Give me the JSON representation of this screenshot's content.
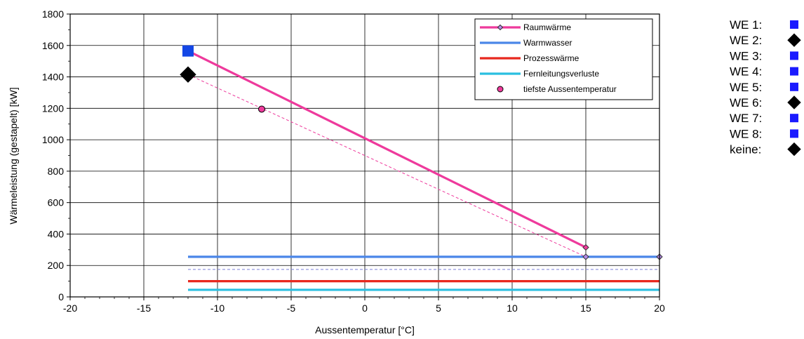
{
  "chart_data": {
    "type": "line",
    "title": "",
    "xlabel": "Aussentemperatur [°C]",
    "ylabel": "Wärmeleistung (gestapelt) [kW]",
    "xlim": [
      -20,
      20
    ],
    "ylim": [
      0,
      1800
    ],
    "xticks": [
      -20,
      -15,
      -10,
      -5,
      0,
      5,
      10,
      15,
      20
    ],
    "yticks": [
      0,
      200,
      400,
      600,
      800,
      1000,
      1200,
      1400,
      1600,
      1800
    ],
    "grid": true,
    "legend_position": "top-right",
    "series": [
      {
        "name": "Raumwärme",
        "color": "#ee3a9c",
        "marker": "diamond",
        "x": [
          -12,
          15
        ],
        "y": [
          1565,
          315
        ]
      },
      {
        "name": "Warmwasser",
        "color": "#4a86e8",
        "marker": "diamond",
        "x": [
          -12,
          20
        ],
        "y": [
          255,
          255
        ]
      },
      {
        "name": "Prozesswärme",
        "color": "#e8281e",
        "x": [
          -12,
          20
        ],
        "y": [
          100,
          100
        ]
      },
      {
        "name": "Fernleitungsverluste",
        "color": "#29bfe0",
        "x": [
          -12,
          20
        ],
        "y": [
          45,
          45
        ]
      },
      {
        "name": "tiefste Aussentemperatur",
        "color": "#ee3a9c",
        "marker": "circle",
        "x": [
          -7
        ],
        "y": [
          1195
        ]
      }
    ],
    "dashed_lines": [
      {
        "color": "#ee3a9c",
        "x": [
          -12,
          15
        ],
        "y": [
          1415,
          255
        ]
      },
      {
        "color": "#7b7fd8",
        "x": [
          -12,
          20
        ],
        "y": [
          175,
          175
        ]
      }
    ],
    "extra_markers": [
      {
        "shape": "square",
        "color": "#1447e6",
        "x": -12,
        "y": 1565
      },
      {
        "shape": "diamond",
        "color": "#000000",
        "x": -12,
        "y": 1415
      },
      {
        "shape": "diamond-small",
        "color": "#b388e8",
        "x": 15,
        "y": 255
      }
    ]
  },
  "side_legend": [
    {
      "label": "WE 1:",
      "shape": "square",
      "color": "#1a1aff"
    },
    {
      "label": "WE 2:",
      "shape": "diamond",
      "color": "#000000"
    },
    {
      "label": "WE 3:",
      "shape": "square",
      "color": "#1a1aff"
    },
    {
      "label": "WE 4:",
      "shape": "square",
      "color": "#1a1aff"
    },
    {
      "label": "WE 5:",
      "shape": "square",
      "color": "#1a1aff"
    },
    {
      "label": "WE 6:",
      "shape": "diamond",
      "color": "#000000"
    },
    {
      "label": "WE 7:",
      "shape": "square",
      "color": "#1a1aff"
    },
    {
      "label": "WE 8:",
      "shape": "square",
      "color": "#1a1aff"
    },
    {
      "label": "keine:",
      "shape": "diamond",
      "color": "#000000"
    }
  ]
}
